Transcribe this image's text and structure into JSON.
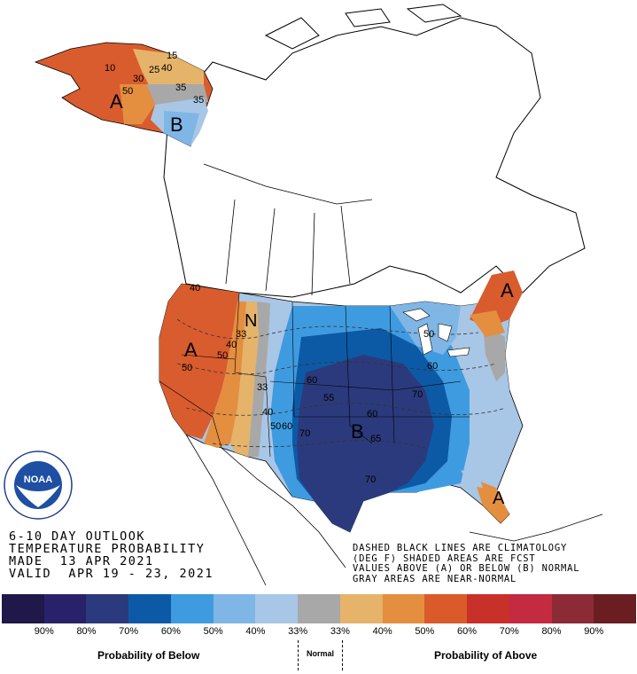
{
  "title_block": {
    "line1": "6-10 DAY OUTLOOK",
    "line2": "TEMPERATURE PROBABILITY",
    "line3": "MADE  13 APR 2021",
    "line4": "VALID  APR 19 - 23, 2021"
  },
  "notes": {
    "line1": "DASHED BLACK LINES ARE CLIMATOLOGY",
    "line2": "(DEG F) SHADED AREAS ARE FCST",
    "line3": "VALUES ABOVE (A) OR BELOW (B) NORMAL",
    "line4": "GRAY AREAS ARE NEAR-NORMAL"
  },
  "map_labels": {
    "above_west": "A",
    "above_alaska": "A",
    "above_northeast": "A",
    "above_florida": "A",
    "below_central": "B",
    "below_alaska": "B",
    "normal_rockies": "N"
  },
  "map_values": {
    "v50_west": "50",
    "v40_west": "40",
    "v50_west_b": "50",
    "v33_w": "33",
    "v33_n": "33",
    "v40_oregon": "40",
    "v40_plains": "40",
    "v50_plains": "50",
    "v60_plains": "60",
    "v70_plains": "70",
    "v55_central": "55",
    "v60_central": "60",
    "v65_central": "65",
    "v70_central": "70",
    "v60_east": "60",
    "v60_east_b": "60",
    "v50_lakes": "50",
    "v70_south": "70",
    "v15_ak": "15",
    "v25_ak": "25",
    "v40_ak": "40",
    "v30_ak": "30",
    "v35_ak": "35",
    "v40_ak_b": "40",
    "v50_ak": "50",
    "v10_ak": "10"
  },
  "legend": {
    "swatch_colors": [
      "#1f1848",
      "#29226a",
      "#2b3a7c",
      "#0c5aa6",
      "#3f9be0",
      "#7fb6e6",
      "#a8c6e6",
      "#a8a8a8",
      "#e5b36a",
      "#e48e40",
      "#db5a2a",
      "#c8302a",
      "#c42a40",
      "#8c2a36",
      "#6a1e22"
    ],
    "labels": [
      "90%",
      "80%",
      "70%",
      "60%",
      "50%",
      "40%",
      "33%",
      "33%",
      "40%",
      "50%",
      "60%",
      "70%",
      "80%",
      "90%"
    ],
    "below_title": "Probability of Below",
    "normal_title": "Normal",
    "above_title": "Probability of Above"
  },
  "logo": {
    "text": "NOAA",
    "ring_text": "NATIONAL OCEANIC AND ATMOSPHERIC ADMINISTRATION · U.S. DEPARTMENT OF COMMERCE"
  }
}
